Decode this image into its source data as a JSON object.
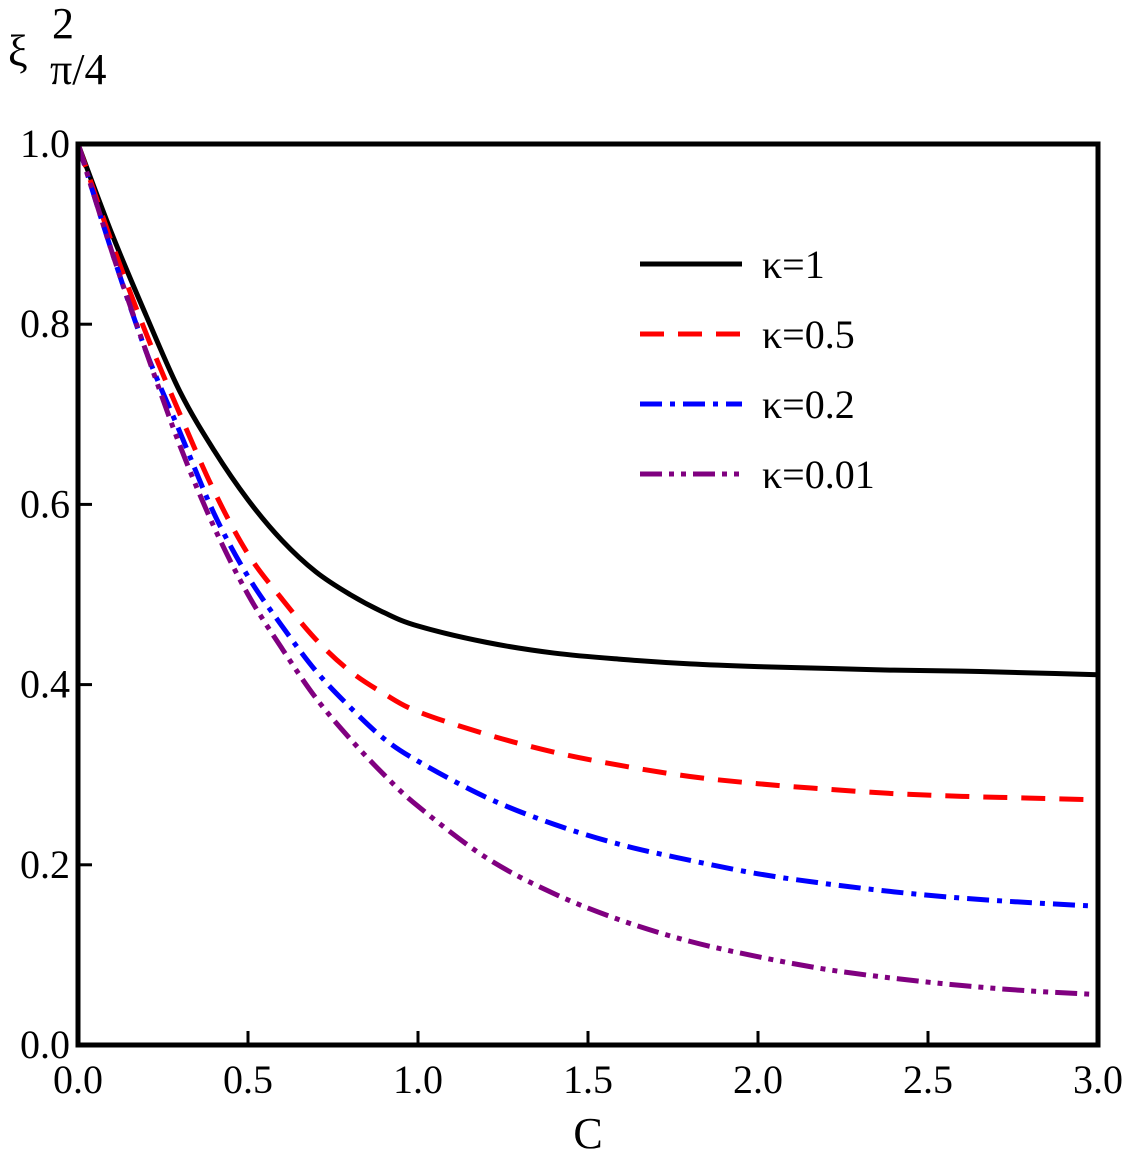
{
  "chart_data": {
    "type": "line",
    "xlabel": "C",
    "ylabel_main": "ξ",
    "ylabel_sup": "2",
    "ylabel_sub": "π/4",
    "xlim": [
      0,
      3
    ],
    "ylim": [
      0,
      1
    ],
    "xticks": [
      "0.0",
      "0.5",
      "1.0",
      "1.5",
      "2.0",
      "2.5",
      "3.0"
    ],
    "yticks": [
      "0.0",
      "0.2",
      "0.4",
      "0.6",
      "0.8",
      "1.0"
    ],
    "grid": false,
    "legend_position": "top-right",
    "series": [
      {
        "name": "κ=1",
        "color": "#000000",
        "style": "solid",
        "x": [
          0,
          0.1,
          0.2,
          0.3,
          0.4,
          0.5,
          0.6,
          0.7,
          0.8,
          0.9,
          1.0,
          1.2,
          1.4,
          1.6,
          1.8,
          2.0,
          2.2,
          2.4,
          2.6,
          2.8,
          3.0
        ],
        "y": [
          1.0,
          0.9,
          0.81,
          0.725,
          0.66,
          0.605,
          0.56,
          0.525,
          0.5,
          0.48,
          0.465,
          0.447,
          0.435,
          0.428,
          0.423,
          0.42,
          0.418,
          0.416,
          0.415,
          0.413,
          0.411
        ]
      },
      {
        "name": "κ=0.5",
        "color": "#ff0000",
        "style": "dashed",
        "x": [
          0,
          0.1,
          0.2,
          0.3,
          0.4,
          0.5,
          0.6,
          0.7,
          0.8,
          0.9,
          1.0,
          1.2,
          1.4,
          1.6,
          1.8,
          2.0,
          2.2,
          2.4,
          2.6,
          2.8,
          3.0
        ],
        "y": [
          1.0,
          0.89,
          0.79,
          0.7,
          0.615,
          0.545,
          0.495,
          0.45,
          0.415,
          0.39,
          0.37,
          0.345,
          0.325,
          0.31,
          0.298,
          0.29,
          0.284,
          0.279,
          0.276,
          0.274,
          0.272
        ]
      },
      {
        "name": "κ=0.2",
        "color": "#0000ff",
        "style": "dashdot",
        "x": [
          0,
          0.1,
          0.2,
          0.3,
          0.4,
          0.5,
          0.6,
          0.7,
          0.8,
          0.9,
          1.0,
          1.2,
          1.4,
          1.6,
          1.8,
          2.0,
          2.2,
          2.4,
          2.6,
          2.8,
          3.0
        ],
        "y": [
          1.0,
          0.88,
          0.77,
          0.68,
          0.59,
          0.52,
          0.465,
          0.415,
          0.375,
          0.34,
          0.315,
          0.275,
          0.245,
          0.222,
          0.205,
          0.19,
          0.179,
          0.17,
          0.163,
          0.158,
          0.154
        ]
      },
      {
        "name": "κ=0.01",
        "color": "#800080",
        "style": "dashdotdot",
        "x": [
          0,
          0.1,
          0.2,
          0.3,
          0.4,
          0.5,
          0.6,
          0.7,
          0.8,
          0.9,
          1.0,
          1.2,
          1.4,
          1.6,
          1.8,
          2.0,
          2.2,
          2.4,
          2.6,
          2.8,
          3.0
        ],
        "y": [
          1.0,
          0.88,
          0.77,
          0.665,
          0.575,
          0.5,
          0.44,
          0.385,
          0.34,
          0.3,
          0.265,
          0.208,
          0.168,
          0.138,
          0.115,
          0.098,
          0.084,
          0.074,
          0.066,
          0.06,
          0.056
        ]
      }
    ]
  }
}
